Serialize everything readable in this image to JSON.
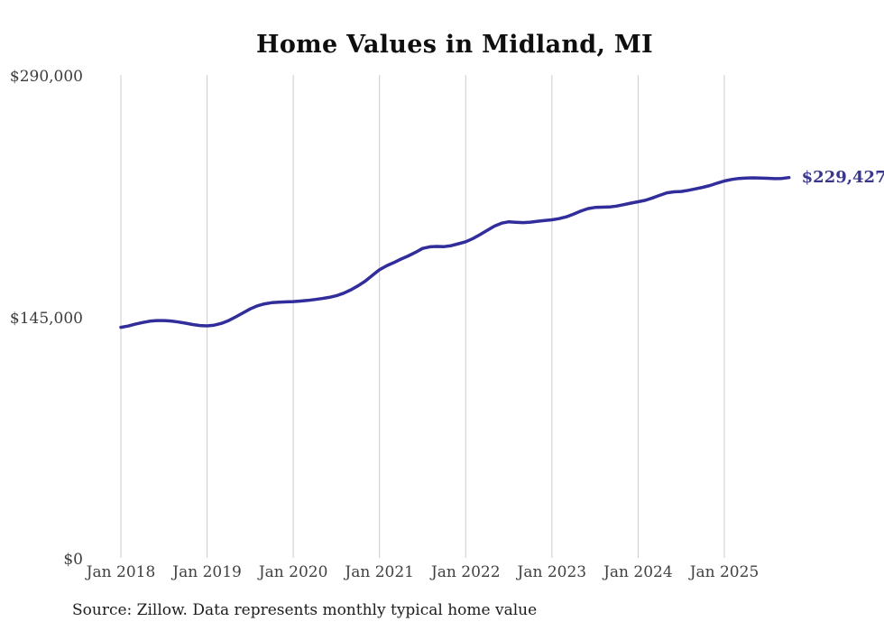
{
  "title": "Home Values in Midland, MI",
  "end_label": "$229,427",
  "source_note": "Source: Zillow. Data represents monthly typical home value",
  "colors": {
    "line": "#312d9b",
    "grid": "#cccccc",
    "axis_text": "#3d3d3d",
    "title_text": "#0f0f0f",
    "end_label_text": "#3a368e",
    "background": "#ffffff"
  },
  "chart_data": {
    "type": "line",
    "title": "Home Values in Midland, MI",
    "x_frequency": "monthly",
    "x_start": "Jan 2018",
    "x_end": "Oct 2025",
    "x_tick_labels": [
      "Jan 2018",
      "Jan 2019",
      "Jan 2020",
      "Jan 2021",
      "Jan 2022",
      "Jan 2023",
      "Jan 2024",
      "Jan 2025"
    ],
    "x_tick_month_indices": [
      0,
      12,
      24,
      36,
      48,
      60,
      72,
      84
    ],
    "y_tick_labels": [
      "$0",
      "$145,000",
      "$290,000"
    ],
    "y_tick_values": [
      0,
      145000,
      290000
    ],
    "ylim": [
      0,
      290000
    ],
    "grid": "vertical-only",
    "legend": "none",
    "end_annotation": "$229,427",
    "end_value": 229427,
    "series": [
      {
        "name": "Typical home value",
        "values": [
          139500,
          140300,
          141400,
          142400,
          143200,
          143600,
          143600,
          143300,
          142700,
          142000,
          141200,
          140600,
          140400,
          140800,
          141900,
          143600,
          145800,
          148200,
          150600,
          152400,
          153600,
          154300,
          154600,
          154800,
          155000,
          155300,
          155700,
          156200,
          156800,
          157500,
          158500,
          160000,
          162000,
          164400,
          167200,
          170700,
          174100,
          176500,
          178400,
          180500,
          182400,
          184500,
          186900,
          187900,
          188100,
          188000,
          188600,
          189700,
          190900,
          192800,
          195200,
          197800,
          200300,
          202100,
          202900,
          202600,
          202400,
          202700,
          203200,
          203700,
          204100,
          204800,
          205900,
          207500,
          209300,
          210800,
          211500,
          211700,
          211800,
          212300,
          213200,
          214100,
          214900,
          215800,
          217200,
          218800,
          220300,
          220900,
          221100,
          221800,
          222700,
          223600,
          224700,
          226100,
          227400,
          228300,
          228900,
          229200,
          229300,
          229200,
          229000,
          228800,
          228900,
          229427
        ]
      }
    ]
  }
}
